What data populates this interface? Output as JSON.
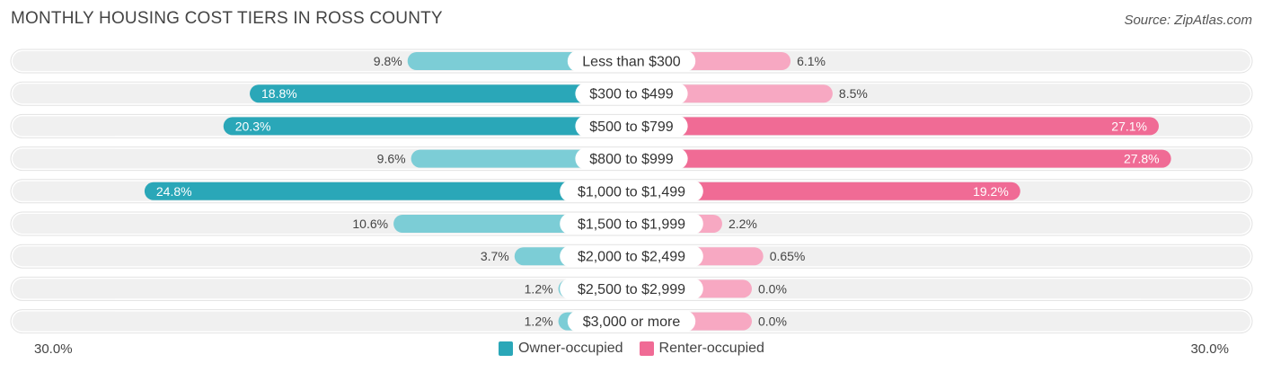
{
  "title": "MONTHLY HOUSING COST TIERS IN ROSS COUNTY",
  "source": "Source: ZipAtlas.com",
  "axis": {
    "left_label": "30.0%",
    "right_label": "30.0%"
  },
  "legend": {
    "owner": "Owner-occupied",
    "renter": "Renter-occupied"
  },
  "colors": {
    "owner_dark": "#2aa7b8",
    "owner_light": "#7ccdd6",
    "renter_dark": "#f06b95",
    "renter_light": "#f7a8c2",
    "row_bg": "#f0f0f0"
  },
  "chart_data": {
    "type": "bar",
    "orientation": "horizontal-diverging",
    "title": "MONTHLY HOUSING COST TIERS IN ROSS COUNTY",
    "xlim": [
      -30,
      30
    ],
    "categories": [
      "Less than $300",
      "$300 to $499",
      "$500 to $799",
      "$800 to $999",
      "$1,000 to $1,499",
      "$1,500 to $1,999",
      "$2,000 to $2,499",
      "$2,500 to $2,999",
      "$3,000 or more"
    ],
    "series": [
      {
        "name": "Owner-occupied",
        "values": [
          9.8,
          18.8,
          20.3,
          9.6,
          24.8,
          10.6,
          3.7,
          1.2,
          1.2
        ],
        "labels": [
          "9.8%",
          "18.8%",
          "20.3%",
          "9.6%",
          "24.8%",
          "10.6%",
          "3.7%",
          "1.2%",
          "1.2%"
        ]
      },
      {
        "name": "Renter-occupied",
        "values": [
          6.1,
          8.5,
          27.1,
          27.8,
          19.2,
          2.2,
          0.65,
          0.0,
          0.0
        ],
        "labels": [
          "6.1%",
          "8.5%",
          "27.1%",
          "27.8%",
          "19.2%",
          "2.2%",
          "0.65%",
          "0.0%",
          "0.0%"
        ]
      }
    ]
  }
}
